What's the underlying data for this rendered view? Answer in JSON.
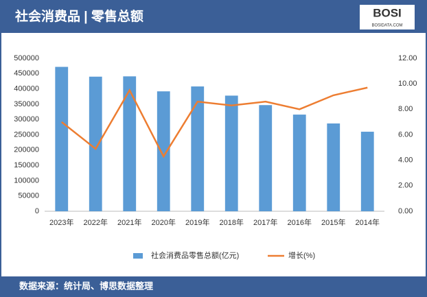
{
  "header": {
    "title": "社会消费品 | 零售总额"
  },
  "logo": {
    "name": "BOSI",
    "url": "BOSIDATA.COM"
  },
  "footer": {
    "source": "数据来源：统计局、博思数据整理"
  },
  "chart_data": {
    "type": "bar",
    "categories": [
      "2023年",
      "2022年",
      "2021年",
      "2020年",
      "2019年",
      "2018年",
      "2017年",
      "2016年",
      "2015年",
      "2014年"
    ],
    "series": [
      {
        "name": "社会消费品零售总额(亿元)",
        "type": "bar",
        "color": "#5b9bd5",
        "values": [
          472000,
          440000,
          441000,
          392000,
          408000,
          378000,
          347000,
          316000,
          287000,
          260000
        ]
      },
      {
        "name": "增长(%)",
        "type": "line",
        "axis": "y2",
        "color": "#ed7d31",
        "values": [
          7.0,
          4.9,
          9.5,
          4.3,
          8.6,
          8.3,
          8.6,
          8.0,
          9.1,
          9.7
        ]
      }
    ],
    "ylim": [
      0,
      500000
    ],
    "yticks": [
      0,
      50000,
      100000,
      150000,
      200000,
      250000,
      300000,
      350000,
      400000,
      450000,
      500000
    ],
    "y2lim": [
      0,
      12
    ],
    "y2ticks": [
      {
        "value": 0,
        "label": "0.00"
      },
      {
        "value": 2,
        "label": "2.00"
      },
      {
        "value": 4,
        "label": "4.00"
      },
      {
        "value": 6,
        "label": "6.00"
      },
      {
        "value": 8,
        "label": "8.00"
      },
      {
        "value": 10,
        "label": "10.00"
      },
      {
        "value": 12,
        "label": "12.00"
      }
    ],
    "legend": "bottom"
  }
}
